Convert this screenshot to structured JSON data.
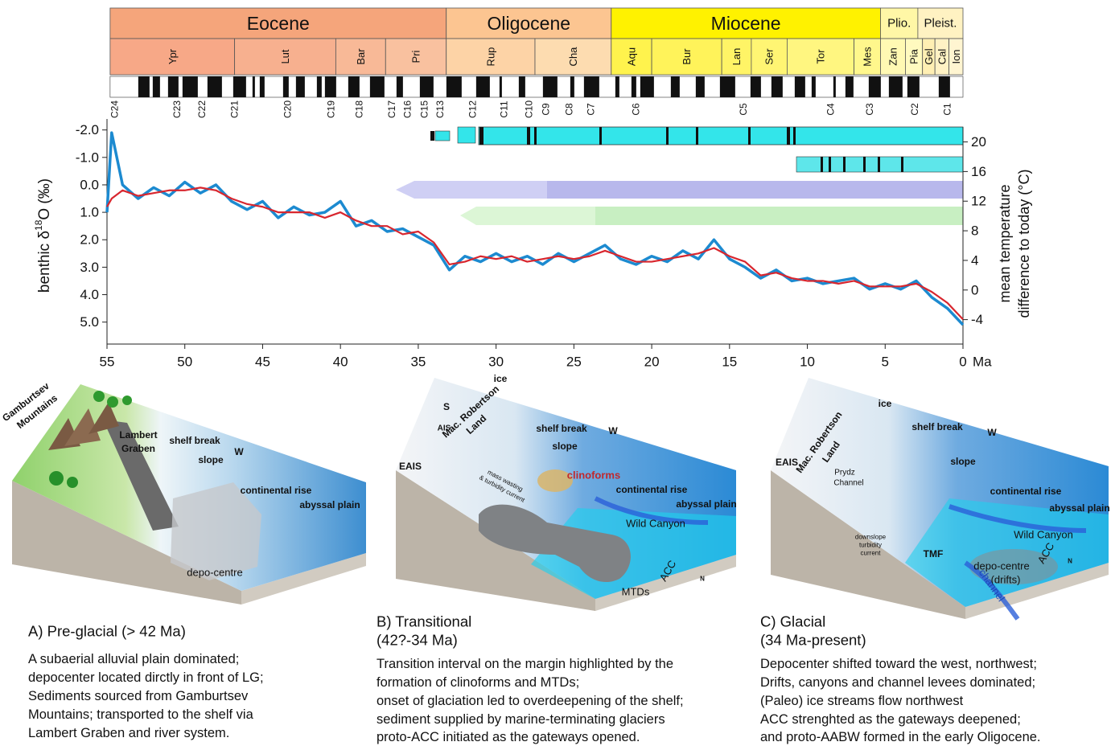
{
  "chart_data": {
    "type": "line",
    "x": [
      55,
      54.7,
      54,
      53,
      52,
      51,
      50,
      49,
      48,
      47,
      46,
      45,
      44,
      43,
      42,
      41,
      40,
      39,
      38,
      37,
      36,
      35,
      34,
      33,
      32,
      31,
      30,
      29,
      28,
      27,
      26,
      25,
      24,
      23,
      22,
      21,
      20,
      19,
      18,
      17,
      16,
      15,
      14,
      13,
      12,
      11,
      10,
      9,
      8,
      7,
      6,
      5,
      4,
      3,
      2,
      1,
      0
    ],
    "series": [
      {
        "color": "#1c8ad0",
        "values": [
          1.0,
          -1.9,
          0.0,
          0.5,
          0.1,
          0.4,
          -0.1,
          0.3,
          0.0,
          0.6,
          0.9,
          0.6,
          1.2,
          0.8,
          1.1,
          1.0,
          0.6,
          1.5,
          1.3,
          1.7,
          1.6,
          1.9,
          2.2,
          3.1,
          2.6,
          2.8,
          2.5,
          2.8,
          2.6,
          2.9,
          2.5,
          2.8,
          2.5,
          2.2,
          2.7,
          2.9,
          2.6,
          2.8,
          2.4,
          2.7,
          2.0,
          2.7,
          3.0,
          3.4,
          3.1,
          3.5,
          3.4,
          3.6,
          3.5,
          3.4,
          3.8,
          3.6,
          3.8,
          3.5,
          4.1,
          4.5,
          5.1
        ]
      },
      {
        "color": "#d8262e",
        "values": [
          0.8,
          0.5,
          0.2,
          0.4,
          0.3,
          0.2,
          0.2,
          0.1,
          0.2,
          0.5,
          0.7,
          0.8,
          1.0,
          1.0,
          1.0,
          1.2,
          1.0,
          1.3,
          1.5,
          1.5,
          1.8,
          1.7,
          2.1,
          2.9,
          2.8,
          2.6,
          2.7,
          2.6,
          2.8,
          2.7,
          2.6,
          2.7,
          2.6,
          2.4,
          2.6,
          2.8,
          2.8,
          2.7,
          2.6,
          2.5,
          2.3,
          2.6,
          2.8,
          3.3,
          3.2,
          3.4,
          3.5,
          3.5,
          3.6,
          3.5,
          3.7,
          3.7,
          3.7,
          3.6,
          3.9,
          4.3,
          4.9
        ]
      }
    ],
    "xlim": [
      55,
      0
    ],
    "xticks": [
      55,
      50,
      45,
      40,
      35,
      30,
      25,
      20,
      15,
      10,
      5,
      0
    ],
    "x_unit": "Ma",
    "ylim": [
      -2.4,
      5.8
    ],
    "y_inverted": true,
    "yticks": [
      {
        "value": -2,
        "label": "-2.0"
      },
      {
        "value": -1,
        "label": "-1.0"
      },
      {
        "value": 0,
        "label": "0.0"
      },
      {
        "value": 1,
        "label": "1.0"
      },
      {
        "value": 2,
        "label": "2.0"
      },
      {
        "value": 3,
        "label": "3.0"
      },
      {
        "value": 4,
        "label": "4.0"
      },
      {
        "value": 5,
        "label": "5.0"
      }
    ],
    "y_label": [
      "benthic δ",
      "18",
      "O (‰)"
    ],
    "y2lim": [
      -7.3,
      23.1
    ],
    "y2ticks": [
      20,
      16,
      12,
      8,
      4,
      0,
      -4
    ],
    "y2_label": [
      "mean temperature",
      "difference to today (°C)"
    ],
    "epochs": [
      {
        "name": "Eocene",
        "start": 54.8,
        "end": 33.2,
        "color": "#f5a57b"
      },
      {
        "name": "Oligocene",
        "start": 33.2,
        "end": 22.6,
        "color": "#fcc591"
      },
      {
        "name": "Miocene",
        "start": 22.6,
        "end": 5.3,
        "color": "#fff200"
      },
      {
        "name": "Plio.",
        "start": 5.3,
        "end": 2.9,
        "color": "#fff7a6"
      },
      {
        "name": "Pleist.",
        "start": 2.9,
        "end": 0,
        "color": "#fff2c2"
      }
    ],
    "stages": [
      {
        "name": "Ypr",
        "start": 54.8,
        "end": 46.8,
        "color": "#f7a887"
      },
      {
        "name": "Lut",
        "start": 46.8,
        "end": 40.3,
        "color": "#f7b08f"
      },
      {
        "name": "Bar",
        "start": 40.3,
        "end": 37.1,
        "color": "#f8b997"
      },
      {
        "name": "Pri",
        "start": 37.1,
        "end": 33.2,
        "color": "#f9c19f"
      },
      {
        "name": "Rup",
        "start": 33.2,
        "end": 27.5,
        "color": "#fdd3a6"
      },
      {
        "name": "Cha",
        "start": 27.5,
        "end": 22.6,
        "color": "#fddcb0"
      },
      {
        "name": "Aqu",
        "start": 22.6,
        "end": 20.0,
        "color": "#fff34d"
      },
      {
        "name": "Bur",
        "start": 20.0,
        "end": 15.5,
        "color": "#fff35a"
      },
      {
        "name": "Lan",
        "start": 15.5,
        "end": 13.6,
        "color": "#fff466"
      },
      {
        "name": "Ser",
        "start": 13.6,
        "end": 11.3,
        "color": "#fff573"
      },
      {
        "name": "Tor",
        "start": 11.3,
        "end": 7.0,
        "color": "#fff680"
      },
      {
        "name": "Mes",
        "start": 7.0,
        "end": 5.3,
        "color": "#fff78c"
      },
      {
        "name": "Zan",
        "start": 5.3,
        "end": 3.7,
        "color": "#fff9b3"
      },
      {
        "name": "Pia",
        "start": 3.7,
        "end": 2.6,
        "color": "#fffabf"
      },
      {
        "name": "Gel",
        "start": 2.6,
        "end": 1.8,
        "color": "#ffefb3"
      },
      {
        "name": "Cal",
        "start": 1.8,
        "end": 0.9,
        "color": "#fff2c4"
      },
      {
        "name": "Ion",
        "start": 0.9,
        "end": 0,
        "color": "#fff5d1"
      }
    ],
    "chrons": [
      {
        "label": "C24",
        "age": 54.5
      },
      {
        "label": "C23",
        "age": 50.5
      },
      {
        "label": "C22",
        "age": 48.9
      },
      {
        "label": "C21",
        "age": 46.8
      },
      {
        "label": "C20",
        "age": 43.4
      },
      {
        "label": "C19",
        "age": 40.6
      },
      {
        "label": "C18",
        "age": 38.8
      },
      {
        "label": "C17",
        "age": 36.7
      },
      {
        "label": "C16",
        "age": 35.7
      },
      {
        "label": "C15",
        "age": 34.6
      },
      {
        "label": "C13",
        "age": 33.6
      },
      {
        "label": "C12",
        "age": 31.5
      },
      {
        "label": "C11",
        "age": 29.5
      },
      {
        "label": "C10",
        "age": 27.9
      },
      {
        "label": "C9",
        "age": 26.8
      },
      {
        "label": "C8",
        "age": 25.3
      },
      {
        "label": "C7",
        "age": 23.9
      },
      {
        "label": "C6",
        "age": 21.0
      },
      {
        "label": "C5",
        "age": 14.1
      },
      {
        "label": "C4",
        "age": 8.5
      },
      {
        "label": "C3",
        "age": 6.0
      },
      {
        "label": "C2",
        "age": 3.1
      },
      {
        "label": "C1",
        "age": 1.0
      }
    ]
  },
  "panels": [
    {
      "title": [
        "A) Pre-glacial (> 42 Ma)"
      ],
      "caption": [
        "A subaerial alluvial plain dominated;",
        "depocenter located dirctly in front of LG;",
        "Sediments sourced from Gamburtsev",
        "Mountains; transported to the shelf via",
        "Lambert Graben and river system."
      ],
      "labels": [
        "Gamburtsev",
        "Mountains",
        "Lambert",
        "Graben",
        "shelf break",
        "W",
        "slope",
        "continental rise",
        "abyssal plain",
        "depo-centre"
      ]
    },
    {
      "title": [
        "B) Transitional",
        "(42?-34 Ma)"
      ],
      "caption": [
        "Transition interval on the margin highlighted by the",
        "formation of clinoforms and MTDs;",
        "onset of glaciation led to overdeepening of the shelf;",
        "sediment supplied by marine-terminating glaciers",
        " proto-ACC initiated as the gateways opened."
      ],
      "labels": [
        "ice",
        "S",
        "AIS",
        "Mac. Robertson",
        "Land",
        "EAIS",
        "shelf break",
        "slope",
        "W",
        "clinoforms",
        "mass wasting",
        "& turbidity current",
        "continental rise",
        "abyssal plain",
        "Wild Canyon",
        "ACC",
        "N",
        "MTDs"
      ]
    },
    {
      "title": [
        "C) Glacial",
        "(34 Ma-present)"
      ],
      "caption": [
        "Depocenter shifted toward the west, northwest;",
        "Drifts, canyons and channel levees dominated;",
        "(Paleo) ice streams flow northwest",
        "ACC strenghted as the gateways deepened;",
        "and proto-AABW formed in the early Oligocene."
      ],
      "labels": [
        "Mac. Robertson",
        "Land",
        "ice",
        "shelf break",
        "W",
        "EAIS",
        "Prydz",
        "Channel",
        "slope",
        "continental rise",
        "abyssal plain",
        "downslope",
        "turbidity",
        "current",
        "Wild Canyon",
        "TMF",
        "depo-centre",
        "(drifts)",
        "channel",
        "ACC",
        "N"
      ]
    }
  ]
}
